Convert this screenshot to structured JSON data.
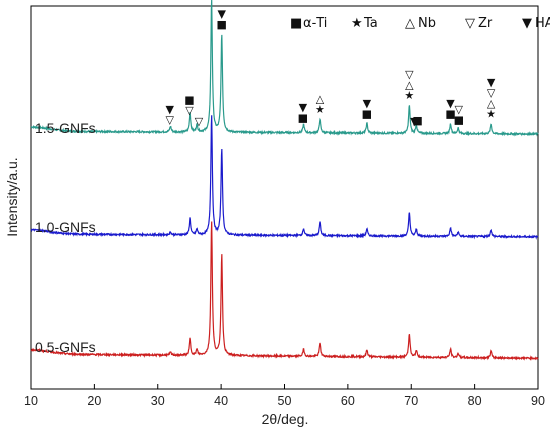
{
  "chart_data": {
    "type": "line",
    "xlabel": "2θ/deg.",
    "ylabel": "Intensity/a.u.",
    "xlim": [
      10,
      90
    ],
    "xticks": [
      10,
      20,
      30,
      40,
      50,
      60,
      70,
      80,
      90
    ],
    "grid": false,
    "y_tick_labels_shown": false,
    "legend": {
      "placement": "top-right",
      "items": [
        {
          "symbol": "■",
          "symbol_name": "filled-square-icon",
          "label": "α-Ti"
        },
        {
          "symbol": "★",
          "symbol_name": "filled-star-icon",
          "label": "Ta"
        },
        {
          "symbol": "△",
          "symbol_name": "open-triangle-up-icon",
          "label": "Nb"
        },
        {
          "symbol": "▽",
          "symbol_name": "open-triangle-down-icon",
          "label": "Zr"
        },
        {
          "symbol": "▼",
          "symbol_name": "filled-triangle-down-icon",
          "label": "HA"
        }
      ]
    },
    "series": [
      {
        "name": "1.5-GNFs",
        "color": "#2a9a8c",
        "baseline": 0.12,
        "baseline_end": 0.1,
        "peaks": [
          {
            "x": 32.0,
            "h": 0.04
          },
          {
            "x": 35.1,
            "h": 0.14
          },
          {
            "x": 36.2,
            "h": 0.05
          },
          {
            "x": 38.5,
            "h": 0.95
          },
          {
            "x": 40.1,
            "h": 0.7
          },
          {
            "x": 53.0,
            "h": 0.06
          },
          {
            "x": 55.6,
            "h": 0.1
          },
          {
            "x": 63.0,
            "h": 0.07
          },
          {
            "x": 69.7,
            "h": 0.2
          },
          {
            "x": 70.8,
            "h": 0.06
          },
          {
            "x": 76.2,
            "h": 0.07
          },
          {
            "x": 77.4,
            "h": 0.04
          },
          {
            "x": 82.6,
            "h": 0.07
          }
        ]
      },
      {
        "name": "1.0-GNFs",
        "color": "#1a1acc",
        "baseline": 0.1,
        "baseline_end": 0.08,
        "peaks": [
          {
            "x": 32.0,
            "h": 0.02
          },
          {
            "x": 35.1,
            "h": 0.12
          },
          {
            "x": 36.2,
            "h": 0.04
          },
          {
            "x": 38.5,
            "h": 0.86
          },
          {
            "x": 40.1,
            "h": 0.62
          },
          {
            "x": 53.0,
            "h": 0.05
          },
          {
            "x": 55.6,
            "h": 0.1
          },
          {
            "x": 63.0,
            "h": 0.05
          },
          {
            "x": 69.7,
            "h": 0.17
          },
          {
            "x": 70.8,
            "h": 0.05
          },
          {
            "x": 76.2,
            "h": 0.06
          },
          {
            "x": 77.4,
            "h": 0.03
          },
          {
            "x": 82.6,
            "h": 0.05
          }
        ]
      },
      {
        "name": "0.5-GNFs",
        "color": "#cc1f1f",
        "baseline": 0.1,
        "baseline_end": 0.07,
        "peaks": [
          {
            "x": 32.0,
            "h": 0.02
          },
          {
            "x": 35.1,
            "h": 0.12
          },
          {
            "x": 36.2,
            "h": 0.04
          },
          {
            "x": 38.5,
            "h": 0.96
          },
          {
            "x": 40.1,
            "h": 0.72
          },
          {
            "x": 53.0,
            "h": 0.05
          },
          {
            "x": 55.6,
            "h": 0.1
          },
          {
            "x": 63.0,
            "h": 0.05
          },
          {
            "x": 69.7,
            "h": 0.17
          },
          {
            "x": 70.8,
            "h": 0.05
          },
          {
            "x": 76.2,
            "h": 0.06
          },
          {
            "x": 77.4,
            "h": 0.03
          },
          {
            "x": 82.6,
            "h": 0.05
          }
        ]
      }
    ],
    "peak_annotations": [
      {
        "x": 31.9,
        "symbols": [
          "▼",
          "▽"
        ]
      },
      {
        "x": 35.0,
        "symbols": [
          "■",
          "▽"
        ]
      },
      {
        "x": 36.5,
        "symbols": [
          "▽"
        ]
      },
      {
        "x": 38.5,
        "symbols": [
          "■",
          "△",
          "★"
        ]
      },
      {
        "x": 40.1,
        "symbols": [
          "▼",
          "■"
        ]
      },
      {
        "x": 52.9,
        "symbols": [
          "▼",
          "■"
        ]
      },
      {
        "x": 55.6,
        "symbols": [
          "△",
          "★"
        ]
      },
      {
        "x": 63.0,
        "symbols": [
          "▼",
          "■"
        ]
      },
      {
        "x": 69.7,
        "symbols": [
          "▽",
          "△",
          "★"
        ]
      },
      {
        "x": 70.5,
        "symbols": [
          "▼"
        ]
      },
      {
        "x": 71.0,
        "symbols": [
          "■"
        ]
      },
      {
        "x": 76.2,
        "symbols": [
          "▼",
          "■"
        ]
      },
      {
        "x": 77.5,
        "symbols": [
          "▽",
          "■"
        ]
      },
      {
        "x": 82.6,
        "symbols": [
          "▼",
          "▽",
          "△",
          "★"
        ]
      }
    ]
  }
}
